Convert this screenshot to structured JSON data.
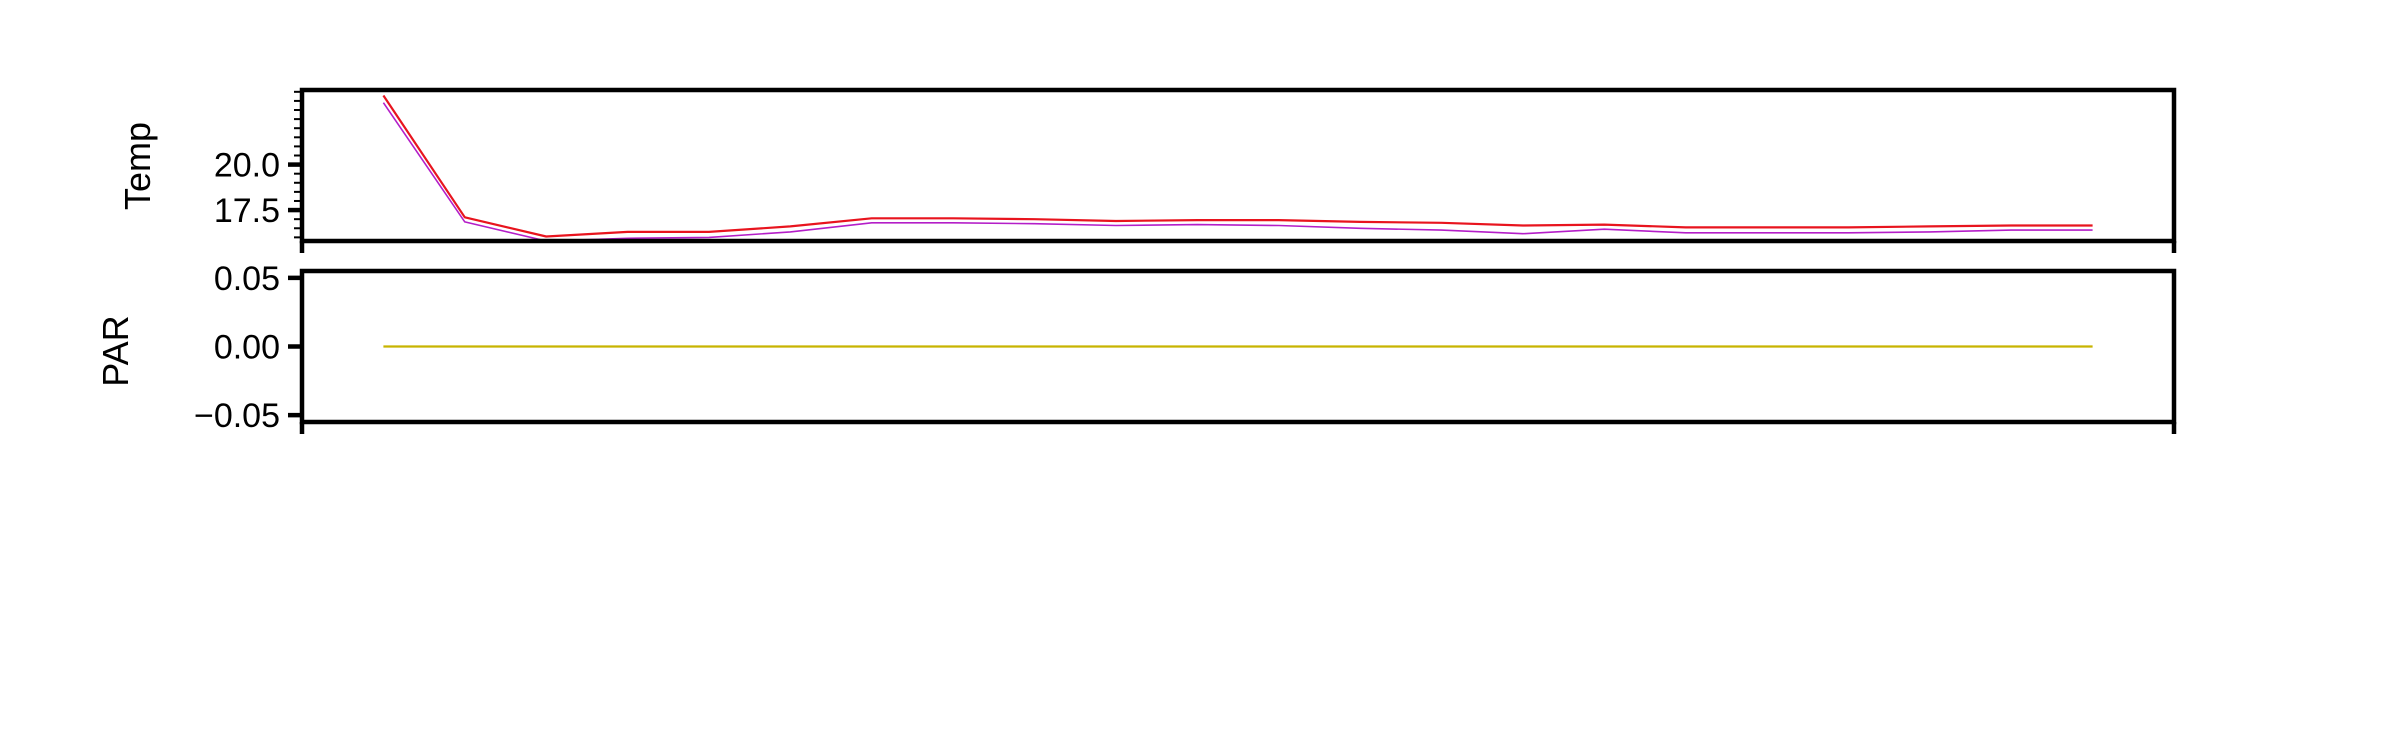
{
  "chart_data": [
    {
      "type": "line",
      "title": "",
      "xlabel": "",
      "ylabel": "Temp",
      "ylim": [
        15.8,
        24.1
      ],
      "x": [
        1,
        2,
        3,
        4,
        5,
        6,
        7,
        8,
        9,
        10,
        11,
        12,
        13,
        14,
        15,
        16,
        17,
        18,
        19,
        20,
        21,
        22
      ],
      "yticks": [
        "17.5",
        "20.0"
      ],
      "yticks_minor_step": 0.5,
      "series": [
        {
          "color": "#e8141e",
          "values": [
            23.8,
            17.1,
            16.05,
            16.3,
            16.3,
            16.6,
            17.05,
            17.05,
            17.0,
            16.9,
            16.95,
            16.95,
            16.85,
            16.8,
            16.65,
            16.7,
            16.55,
            16.55,
            16.55,
            16.6,
            16.65,
            16.65
          ]
        },
        {
          "color": "#b41ec8",
          "values": [
            23.4,
            16.85,
            15.8,
            15.95,
            16.0,
            16.3,
            16.8,
            16.8,
            16.75,
            16.65,
            16.7,
            16.65,
            16.5,
            16.4,
            16.2,
            16.45,
            16.25,
            16.25,
            16.25,
            16.3,
            16.4,
            16.4
          ]
        }
      ]
    },
    {
      "type": "line",
      "title": "",
      "xlabel": "",
      "ylabel": "PAR",
      "ylim": [
        -0.055,
        0.055
      ],
      "x": [
        1,
        2,
        3,
        4,
        5,
        6,
        7,
        8,
        9,
        10,
        11,
        12,
        13,
        14,
        15,
        16,
        17,
        18,
        19,
        20,
        21,
        22
      ],
      "yticks": [
        "−0.05",
        "0.00",
        "0.05"
      ],
      "series": [
        {
          "color": "#c8b400",
          "values": [
            0,
            0,
            0,
            0,
            0,
            0,
            0,
            0,
            0,
            0,
            0,
            0,
            0,
            0,
            0,
            0,
            0,
            0,
            0,
            0,
            0,
            0
          ]
        }
      ]
    }
  ]
}
